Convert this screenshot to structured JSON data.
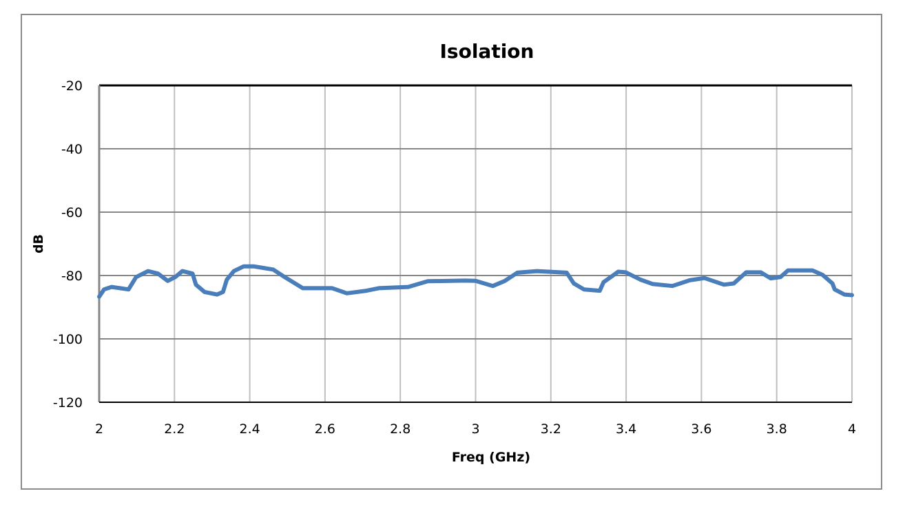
{
  "chart_data": {
    "type": "line",
    "title": "Isolation",
    "xlabel": "Freq (GHz)",
    "ylabel": "dB",
    "xlim": [
      2,
      4
    ],
    "ylim": [
      -120,
      -20
    ],
    "xticks": [
      "2",
      "2.2",
      "2.4",
      "2.6",
      "2.8",
      "3",
      "3.2",
      "3.4",
      "3.6",
      "3.8",
      "4"
    ],
    "yticks": [
      "-20",
      "-40",
      "-60",
      "-80",
      "-100",
      "-120"
    ],
    "grid": true,
    "legend": "none",
    "colors": {
      "line": "#4a7ebb",
      "hgrid": "#868686",
      "vgrid": "#bfbfbf",
      "frame": "#8a8a8a"
    },
    "series": [
      {
        "x": [
          2.0,
          2.013,
          2.033,
          2.078,
          2.098,
          2.13,
          2.156,
          2.182,
          2.202,
          2.221,
          2.248,
          2.257,
          2.28,
          2.313,
          2.329,
          2.339,
          2.358,
          2.384,
          2.41,
          2.462,
          2.489,
          2.541,
          2.619,
          2.658,
          2.71,
          2.743,
          2.821,
          2.873,
          2.971,
          3.0,
          3.046,
          3.078,
          3.111,
          3.163,
          3.242,
          3.261,
          3.288,
          3.33,
          3.34,
          3.379,
          3.399,
          3.438,
          3.471,
          3.523,
          3.569,
          3.608,
          3.66,
          3.686,
          3.719,
          3.758,
          3.784,
          3.81,
          3.83,
          3.895,
          3.922,
          3.948,
          3.954,
          3.98,
          4.0
        ],
        "y": [
          -86.7,
          -84.4,
          -83.6,
          -84.4,
          -80.5,
          -78.6,
          -79.4,
          -81.7,
          -80.5,
          -78.6,
          -79.4,
          -82.9,
          -85.2,
          -86.0,
          -85.2,
          -81.3,
          -78.6,
          -77.1,
          -77.1,
          -78.1,
          -80.2,
          -84.0,
          -84.0,
          -85.6,
          -84.8,
          -84.0,
          -83.6,
          -81.8,
          -81.6,
          -81.7,
          -83.3,
          -81.7,
          -79.1,
          -78.6,
          -79.1,
          -82.5,
          -84.4,
          -84.8,
          -82.1,
          -78.8,
          -79.0,
          -81.3,
          -82.7,
          -83.3,
          -81.5,
          -80.8,
          -82.9,
          -82.5,
          -79.0,
          -79.0,
          -80.9,
          -80.5,
          -78.4,
          -78.4,
          -79.8,
          -82.5,
          -84.4,
          -86.0,
          -86.2
        ]
      }
    ]
  }
}
